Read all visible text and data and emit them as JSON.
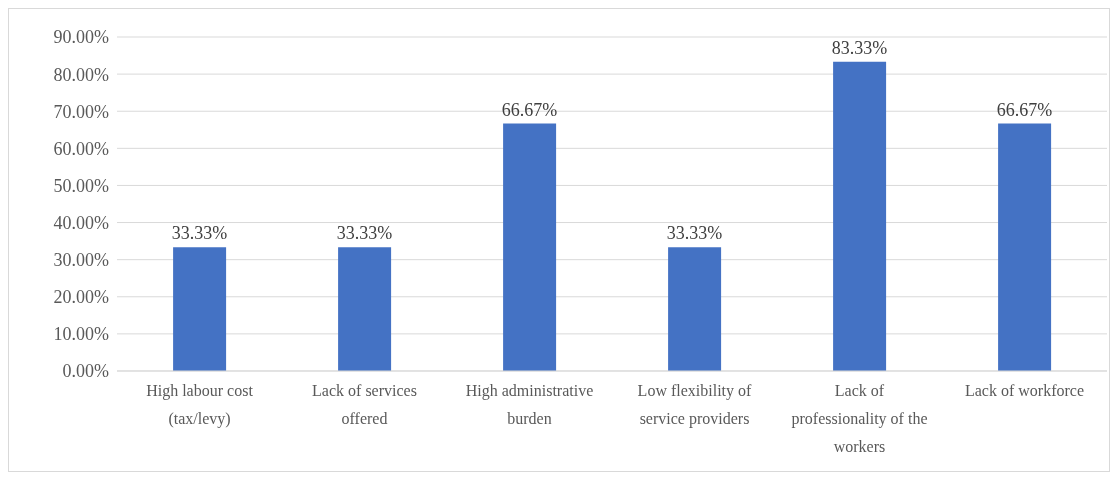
{
  "chart_data": {
    "type": "bar",
    "categories": [
      "High labour cost (tax/levy)",
      "Lack of services offered",
      "High administrative burden",
      "Low flexibility of service providers",
      "Lack of professionality of the workers",
      "Lack of workforce"
    ],
    "values": [
      33.33,
      33.33,
      66.67,
      33.33,
      83.33,
      66.67
    ],
    "value_labels": [
      "33.33%",
      "33.33%",
      "66.67%",
      "33.33%",
      "83.33%",
      "66.67%"
    ],
    "color": "#4472c4",
    "ylim": [
      0,
      90
    ],
    "yticks": [
      {
        "value": 0,
        "label": "0.00%"
      },
      {
        "value": 10,
        "label": "10.00%"
      },
      {
        "value": 20,
        "label": "20.00%"
      },
      {
        "value": 30,
        "label": "30.00%"
      },
      {
        "value": 40,
        "label": "40.00%"
      },
      {
        "value": 50,
        "label": "50.00%"
      },
      {
        "value": 60,
        "label": "60.00%"
      },
      {
        "value": 70,
        "label": "70.00%"
      },
      {
        "value": 80,
        "label": "80.00%"
      },
      {
        "value": 90,
        "label": "90.00%"
      }
    ],
    "grid": "y",
    "legend": false
  }
}
